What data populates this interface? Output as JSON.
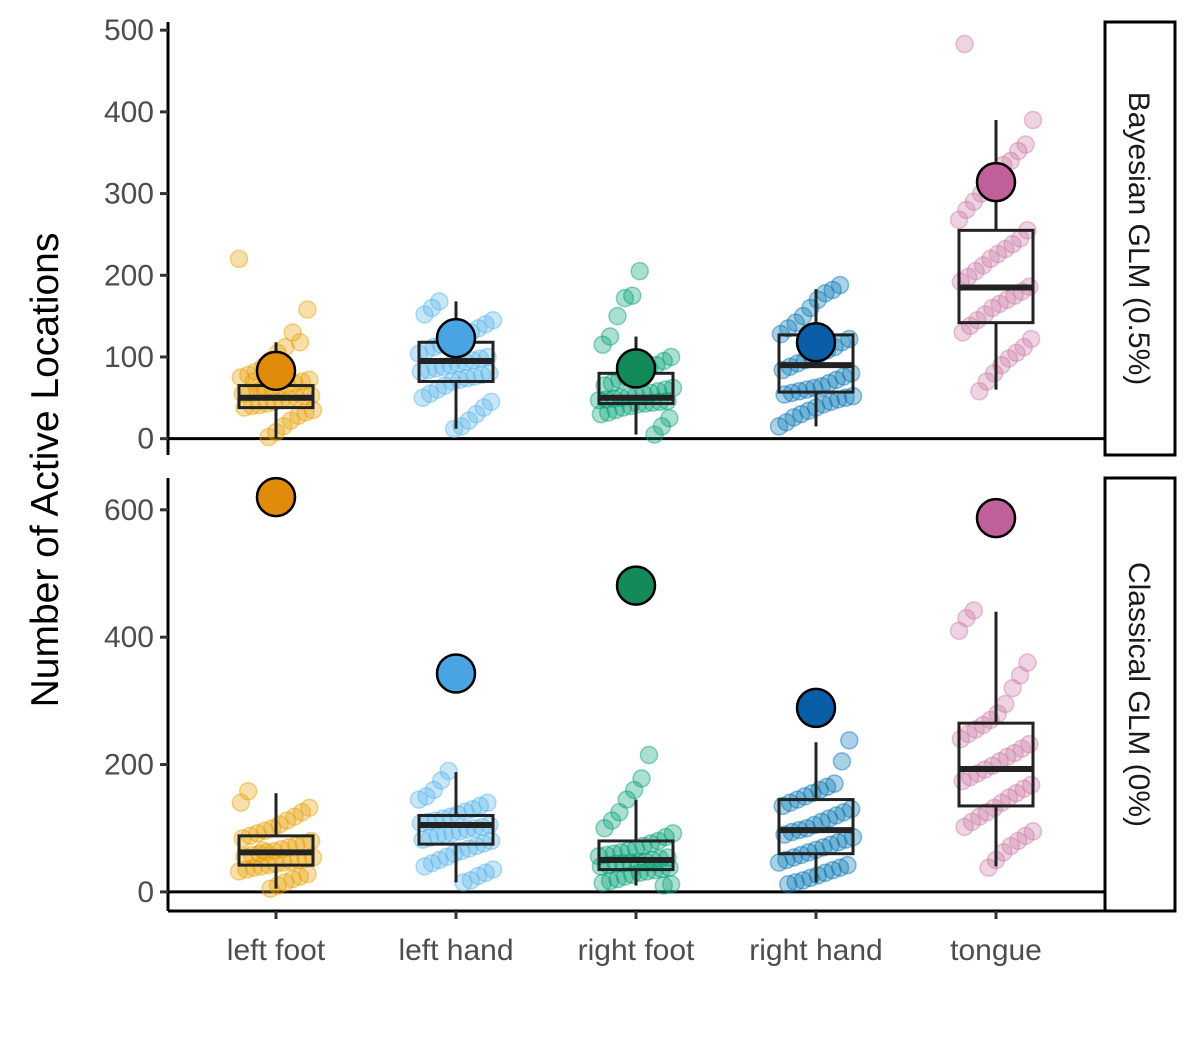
{
  "chart_data": {
    "type": "scatter",
    "ylabel": "Number of Active Locations",
    "categories": [
      "left foot",
      "left hand",
      "right foot",
      "right hand",
      "tongue"
    ],
    "colors": [
      "#E69F00",
      "#56B4E9",
      "#009E73",
      "#0072B2",
      "#CC79A7"
    ],
    "point_colors": [
      "#E08C0A",
      "#4AA3E3",
      "#138A5A",
      "#0A5EA8",
      "#C0609A"
    ],
    "grid": false,
    "panels": [
      {
        "strip": "Bayesian GLM (0.5%)",
        "ylim": [
          -20,
          510
        ],
        "yticks": [
          0,
          100,
          200,
          300,
          400,
          500
        ],
        "group_values": [
          83,
          123,
          86,
          118,
          314
        ],
        "boxes": [
          {
            "lower_whisker": 0,
            "q1": 38,
            "median": 50,
            "q3": 65,
            "upper_whisker": 118
          },
          {
            "lower_whisker": 12,
            "q1": 70,
            "median": 95,
            "q3": 118,
            "upper_whisker": 168
          },
          {
            "lower_whisker": 5,
            "q1": 43,
            "median": 50,
            "q3": 80,
            "upper_whisker": 125
          },
          {
            "lower_whisker": 15,
            "q1": 57,
            "median": 90,
            "q3": 127,
            "upper_whisker": 183
          },
          {
            "lower_whisker": 60,
            "q1": 142,
            "median": 185,
            "q3": 255,
            "upper_whisker": 390
          }
        ],
        "subjects": [
          [
            220,
            158,
            118,
            130,
            112,
            105,
            96,
            88,
            82,
            78,
            75,
            72,
            70,
            68,
            66,
            64,
            62,
            60,
            58,
            56,
            55,
            53,
            52,
            50,
            48,
            47,
            45,
            43,
            41,
            40,
            38,
            35,
            32,
            28,
            22,
            15,
            8,
            2,
            60,
            70
          ],
          [
            168,
            160,
            152,
            145,
            140,
            135,
            130,
            126,
            122,
            118,
            115,
            112,
            108,
            104,
            100,
            98,
            96,
            94,
            92,
            90,
            88,
            86,
            84,
            82,
            80,
            78,
            76,
            74,
            72,
            70,
            65,
            60,
            55,
            50,
            45,
            38,
            30,
            22,
            15,
            12
          ],
          [
            205,
            175,
            172,
            150,
            125,
            115,
            100,
            95,
            90,
            86,
            82,
            78,
            75,
            72,
            68,
            65,
            62,
            60,
            58,
            56,
            55,
            53,
            52,
            50,
            49,
            48,
            47,
            46,
            45,
            44,
            43,
            42,
            40,
            38,
            35,
            32,
            30,
            25,
            15,
            5
          ],
          [
            188,
            182,
            178,
            170,
            160,
            150,
            142,
            135,
            128,
            122,
            118,
            112,
            108,
            104,
            100,
            96,
            92,
            88,
            84,
            80,
            76,
            72,
            68,
            64,
            62,
            60,
            58,
            56,
            54,
            52,
            50,
            48,
            45,
            42,
            38,
            34,
            30,
            26,
            20,
            15
          ],
          [
            483,
            390,
            360,
            352,
            340,
            335,
            325,
            310,
            300,
            290,
            280,
            268,
            255,
            245,
            238,
            232,
            226,
            220,
            212,
            205,
            198,
            192,
            186,
            180,
            175,
            170,
            165,
            160,
            152,
            145,
            138,
            130,
            122,
            112,
            105,
            98,
            90,
            80,
            70,
            58
          ]
        ]
      },
      {
        "strip": "Classical GLM (0%)",
        "ylim": [
          -30,
          650
        ],
        "yticks": [
          0,
          200,
          400,
          600
        ],
        "group_values": [
          620,
          343,
          481,
          289,
          587
        ],
        "boxes": [
          {
            "lower_whisker": 5,
            "q1": 42,
            "median": 62,
            "q3": 88,
            "upper_whisker": 155
          },
          {
            "lower_whisker": 15,
            "q1": 75,
            "median": 105,
            "q3": 120,
            "upper_whisker": 188
          },
          {
            "lower_whisker": 10,
            "q1": 35,
            "median": 50,
            "q3": 80,
            "upper_whisker": 145
          },
          {
            "lower_whisker": 15,
            "q1": 60,
            "median": 97,
            "q3": 145,
            "upper_whisker": 235
          },
          {
            "lower_whisker": 40,
            "q1": 135,
            "median": 193,
            "q3": 265,
            "upper_whisker": 440
          }
        ],
        "subjects": [
          [
            158,
            140,
            132,
            125,
            118,
            112,
            106,
            100,
            96,
            92,
            88,
            84,
            80,
            76,
            73,
            70,
            67,
            64,
            62,
            60,
            58,
            56,
            54,
            52,
            50,
            48,
            46,
            44,
            42,
            40,
            38,
            35,
            32,
            28,
            24,
            20,
            15,
            10,
            5,
            65
          ],
          [
            190,
            175,
            160,
            150,
            145,
            140,
            135,
            130,
            126,
            122,
            118,
            115,
            112,
            110,
            108,
            105,
            102,
            100,
            98,
            95,
            92,
            90,
            88,
            85,
            82,
            80,
            76,
            72,
            68,
            64,
            60,
            55,
            50,
            45,
            40,
            35,
            30,
            25,
            18,
            15
          ],
          [
            215,
            178,
            160,
            145,
            125,
            112,
            100,
            92,
            86,
            80,
            76,
            72,
            68,
            65,
            62,
            60,
            58,
            56,
            54,
            52,
            50,
            48,
            47,
            46,
            45,
            44,
            42,
            40,
            38,
            36,
            34,
            32,
            30,
            27,
            24,
            20,
            17,
            14,
            12,
            10
          ],
          [
            238,
            205,
            170,
            165,
            160,
            155,
            150,
            145,
            140,
            135,
            130,
            125,
            120,
            115,
            110,
            105,
            100,
            97,
            94,
            90,
            86,
            82,
            78,
            74,
            70,
            66,
            62,
            58,
            54,
            50,
            46,
            42,
            38,
            34,
            30,
            26,
            22,
            18,
            15,
            12
          ],
          [
            442,
            430,
            410,
            360,
            340,
            320,
            295,
            280,
            270,
            262,
            255,
            248,
            240,
            232,
            225,
            218,
            212,
            205,
            198,
            192,
            186,
            180,
            174,
            168,
            162,
            155,
            148,
            140,
            132,
            125,
            118,
            110,
            102,
            95,
            88,
            80,
            72,
            62,
            50,
            38
          ]
        ]
      }
    ]
  }
}
